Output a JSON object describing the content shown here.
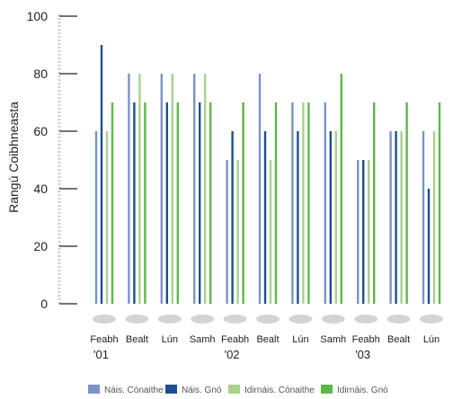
{
  "chart_data": {
    "type": "bar",
    "ylabel": "Rangú Coibhneasta",
    "ylim": [
      0,
      100
    ],
    "yticks": [
      0,
      20,
      40,
      60,
      80,
      100
    ],
    "grid": false,
    "legend_position": "bottom",
    "categories": [
      "Feabh",
      "Bealt",
      "Lún",
      "Samh",
      "Feabh",
      "Bealt",
      "Lún",
      "Samh",
      "Feabh",
      "Bealt",
      "Lún"
    ],
    "year_labels": [
      {
        "index": 0,
        "label": "'01"
      },
      {
        "index": 4,
        "label": "'02"
      },
      {
        "index": 8,
        "label": "'03"
      }
    ],
    "series": [
      {
        "name": "Náis. Cónaithe",
        "color": "#7b93c9",
        "values": [
          60,
          80,
          80,
          80,
          50,
          80,
          70,
          70,
          50,
          60,
          60
        ]
      },
      {
        "name": "Náis. Gnó",
        "color": "#1d4f91",
        "values": [
          90,
          70,
          70,
          70,
          60,
          60,
          60,
          60,
          50,
          60,
          40
        ]
      },
      {
        "name": "Idirnáis. Cónaithe",
        "color": "#a9d18e",
        "values": [
          60,
          80,
          80,
          80,
          50,
          50,
          70,
          60,
          50,
          60,
          60
        ]
      },
      {
        "name": "Idirnáis. Gnó",
        "color": "#5cb84a",
        "values": [
          70,
          70,
          70,
          70,
          70,
          70,
          70,
          80,
          70,
          70,
          70
        ]
      }
    ],
    "base_marker_color": "#d4d4d4"
  }
}
